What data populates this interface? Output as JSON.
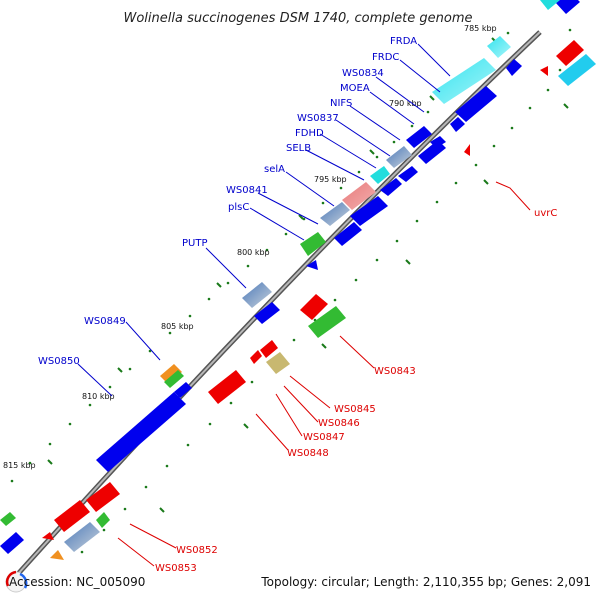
{
  "title": "Wolinella succinogenes DSM 1740, complete genome",
  "footer": {
    "accession": "Accession: NC_005090",
    "summary": "Topology: circular; Length: 2,110,355 bp; Genes: 2,091"
  },
  "colors": {
    "forward_label": "#0000cc",
    "reverse_label": "#dd0000",
    "backbone": "#7a7a7a",
    "tick_dots": "#1a7a1a"
  },
  "ticks": [
    {
      "label": "785 kbp"
    },
    {
      "label": "790 kbp"
    },
    {
      "label": "795 kbp"
    },
    {
      "label": "800 kbp"
    },
    {
      "label": "805 kbp"
    },
    {
      "label": "810 kbp"
    },
    {
      "label": "815 kbp"
    }
  ],
  "forward_labels": [
    "FRDA",
    "FRDC",
    "WS0834",
    "MOEA",
    "NIFS",
    "WS0837",
    "FDHD",
    "SELB",
    "selA",
    "WS0841",
    "plsC",
    "PUTP",
    "WS0849",
    "WS0850"
  ],
  "reverse_labels": [
    "uvrC",
    "WS0843",
    "WS0845",
    "WS0846",
    "WS0847",
    "WS0848",
    "WS0852",
    "WS0853"
  ],
  "legend_icon": "genome-map-icon"
}
